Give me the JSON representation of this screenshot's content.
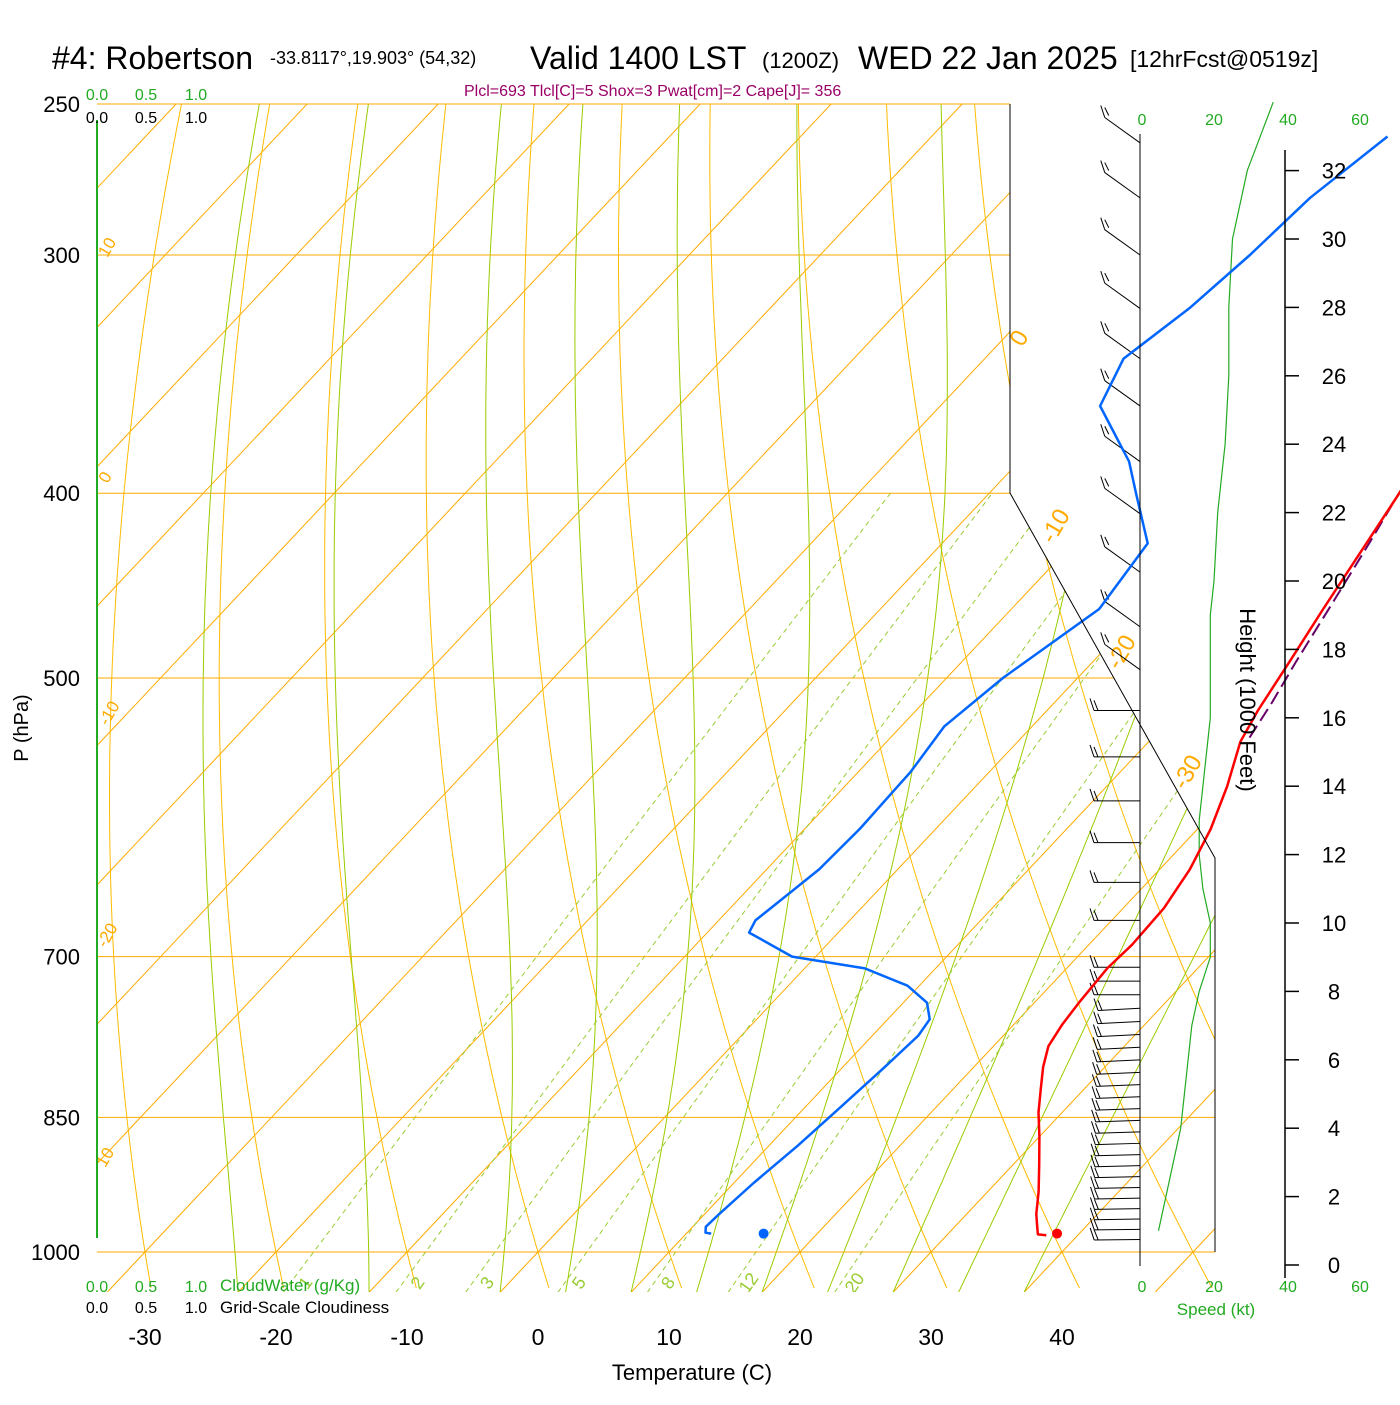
{
  "title": {
    "station": "#4: Robertson",
    "coords": "-33.8117°,19.903° (54,32)",
    "valid": "Valid 1400 LST",
    "utc": "(1200Z)",
    "date": "WED 22 Jan 2025",
    "fcst": "[12hrFcst@0519z]"
  },
  "indices": "Plcl=693 Tlcl[C]=5 Shox=3 Pwat[cm]=2 Cape[J]= 356",
  "cloud_scale": {
    "cloudwater_ticks": [
      "0.0",
      "0.5",
      "1.0"
    ],
    "cloudiness_ticks": [
      "0.0",
      "0.5",
      "1.0"
    ],
    "cloudwater_label": "CloudWater (g/Kg)",
    "cloudiness_label": "Grid-Scale Cloudiness"
  },
  "colors": {
    "temperature": "#ff0000",
    "dewpoint": "#0066ff",
    "parcel": "#660066",
    "isotherm": "#ffaa00",
    "dry_adiabat": "#ffbb00",
    "moist_adiabat": "#99cc00",
    "mixing_ratio": "#99cc33",
    "speed": "#22aa22",
    "index_text": "#990066"
  },
  "chart_data": [
    {
      "type": "line",
      "name": "skew-t",
      "xlabel": "Temperature (C)",
      "ylabel": "P (hPa)",
      "x_ticks": [
        "-30",
        "-20",
        "-10",
        "0",
        "10",
        "20",
        "30",
        "40"
      ],
      "x_tick_values": [
        -30,
        -20,
        -10,
        0,
        10,
        20,
        30,
        40
      ],
      "pressure_levels": [
        250,
        300,
        400,
        500,
        700,
        850,
        1000
      ],
      "pressure_labels": [
        "250",
        "300",
        "400",
        "500",
        "700",
        "850",
        "1000"
      ],
      "isotherm_labels": [
        {
          "text": "10",
          "t": 10,
          "p": 262
        },
        {
          "text": "0",
          "t": 0,
          "p": 310
        },
        {
          "text": "-10",
          "t": -10,
          "p": 350
        },
        {
          "text": "-20",
          "t": -20,
          "p": 405
        },
        {
          "text": "10",
          "t": 10,
          "p": 425
        },
        {
          "text": "0",
          "t": 0,
          "p": 400
        },
        {
          "text": "-10",
          "t": -10,
          "p": 520
        },
        {
          "text": "-20",
          "t": -20,
          "p": 690
        },
        {
          "text": "-30",
          "t": -30,
          "p": 890
        }
      ],
      "mixing_ratio_labels": [
        "1",
        "2",
        "3",
        "5",
        "8",
        "12",
        "20"
      ],
      "mixing_ratio_values": [
        1,
        2,
        3,
        5,
        8,
        12,
        20
      ],
      "series": [
        {
          "series_id": "temperature",
          "points": [
            [
              -0.3,
              260
            ],
            [
              1.3,
              280
            ],
            [
              3.0,
              300
            ],
            [
              4.8,
              320
            ],
            [
              6.7,
              340
            ],
            [
              8.6,
              360
            ],
            [
              10.3,
              380
            ],
            [
              11.3,
              400
            ],
            [
              12.6,
              430
            ],
            [
              13.8,
              460
            ],
            [
              15.0,
              490
            ],
            [
              16.1,
              520
            ],
            [
              17.0,
              540
            ],
            [
              19.2,
              570
            ],
            [
              21.0,
              600
            ],
            [
              22.3,
              630
            ],
            [
              23.1,
              660
            ],
            [
              23.3,
              690
            ],
            [
              23.1,
              710
            ],
            [
              23.4,
              740
            ],
            [
              23.7,
              760
            ],
            [
              24.2,
              780
            ],
            [
              25.3,
              800
            ],
            [
              26.6,
              820
            ],
            [
              28.2,
              845
            ],
            [
              30.0,
              870
            ],
            [
              32.0,
              900
            ],
            [
              33.9,
              930
            ],
            [
              35.3,
              955
            ],
            [
              36.3,
              970
            ],
            [
              36.9,
              979
            ],
            [
              37.6,
              980
            ]
          ]
        },
        {
          "series_id": "dewpoint",
          "points": [
            [
              -15.2,
              260
            ],
            [
              -16.7,
              280
            ],
            [
              -17.2,
              300
            ],
            [
              -18.0,
              320
            ],
            [
              -19.4,
              340
            ],
            [
              -17.8,
              360
            ],
            [
              -11.6,
              385
            ],
            [
              -8.8,
              400
            ],
            [
              -4.3,
              425
            ],
            [
              -3.3,
              460
            ],
            [
              -5.7,
              500
            ],
            [
              -6.7,
              530
            ],
            [
              -6.0,
              560
            ],
            [
              -5.8,
              600
            ],
            [
              -6.0,
              630
            ],
            [
              -6.9,
              660
            ],
            [
              -7.2,
              670
            ],
            [
              -6.8,
              680
            ],
            [
              -1.8,
              700
            ],
            [
              4.6,
              710
            ],
            [
              9.1,
              725
            ],
            [
              11.8,
              740
            ],
            [
              13.2,
              755
            ],
            [
              13.5,
              770
            ],
            [
              13.2,
              800
            ],
            [
              12.7,
              840
            ],
            [
              12.2,
              880
            ],
            [
              11.5,
              920
            ],
            [
              11.1,
              955
            ],
            [
              11.0,
              970
            ],
            [
              11.4,
              977
            ],
            [
              11.9,
              978
            ]
          ]
        },
        {
          "series_id": "parcel",
          "points": [
            [
              2.0,
              262
            ],
            [
              4.0,
              285
            ],
            [
              6.0,
              310
            ],
            [
              7.9,
              340
            ],
            [
              9.4,
              365
            ],
            [
              11.0,
              395
            ],
            [
              12.6,
              425
            ],
            [
              14.0,
              455
            ],
            [
              15.5,
              490
            ],
            [
              16.6,
              515
            ],
            [
              17.5,
              540
            ]
          ]
        }
      ],
      "surface_markers": [
        {
          "name": "surface-temperature",
          "t": 38.3,
          "p": 978
        },
        {
          "name": "surface-dewpoint",
          "t": 15.9,
          "p": 978
        }
      ]
    },
    {
      "type": "line",
      "name": "height-speed",
      "ylabel": "Height (1000 Feet)",
      "xlabel": "Speed (kt)",
      "height_ticks": [
        "0",
        "2",
        "4",
        "6",
        "8",
        "10",
        "12",
        "14",
        "16",
        "18",
        "20",
        "22",
        "24",
        "26",
        "28",
        "30",
        "32"
      ],
      "height_tick_values": [
        0,
        2,
        4,
        6,
        8,
        10,
        12,
        14,
        16,
        18,
        20,
        22,
        24,
        26,
        28,
        30,
        32
      ],
      "speed_ticks": [
        "0",
        "20",
        "40",
        "60"
      ],
      "speed_tick_values": [
        0,
        20,
        40,
        60
      ],
      "speed_profile": [
        [
          5,
          1
        ],
        [
          7,
          2
        ],
        [
          9,
          3
        ],
        [
          11,
          4
        ],
        [
          12,
          5
        ],
        [
          13,
          6
        ],
        [
          14,
          7
        ],
        [
          16,
          8
        ],
        [
          19,
          9
        ],
        [
          19,
          10
        ],
        [
          17,
          11
        ],
        [
          16,
          12
        ],
        [
          16,
          13
        ],
        [
          17,
          14
        ],
        [
          18,
          15
        ],
        [
          19,
          16
        ],
        [
          19,
          17
        ],
        [
          19,
          18
        ],
        [
          19,
          19
        ],
        [
          20,
          20
        ],
        [
          21,
          22
        ],
        [
          23,
          24
        ],
        [
          24,
          26
        ],
        [
          24,
          28
        ],
        [
          25,
          30
        ],
        [
          29,
          32
        ],
        [
          36,
          34
        ]
      ]
    }
  ]
}
